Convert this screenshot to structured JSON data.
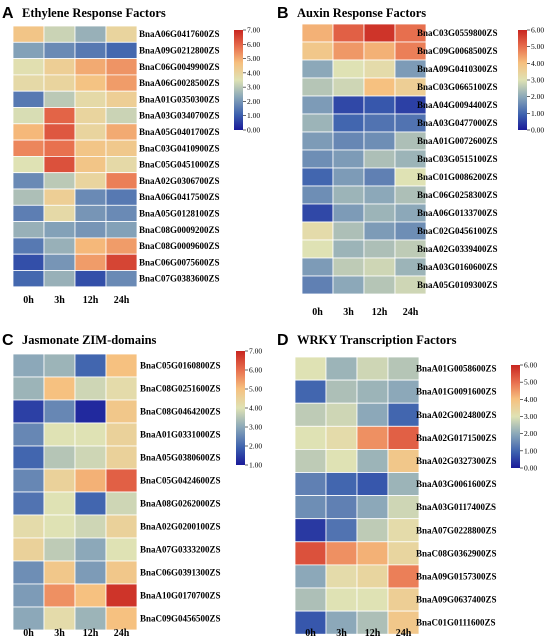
{
  "chart_data": [
    {
      "panel": "A",
      "title": "Ethylene Response Factors",
      "type": "heatmap",
      "x": [
        "0h",
        "3h",
        "12h",
        "24h"
      ],
      "colorbar": {
        "ticks": [
          "0.00",
          "1.00",
          "2.00",
          "3.00",
          "4.00",
          "5.00",
          "6.00",
          "7.00"
        ],
        "min": 0,
        "max": 7
      },
      "genes": [
        "BnaA06G0417600ZS",
        "BnaA09G0212800ZS",
        "BnaC06G0049900ZS",
        "BnaA06G0028500ZS",
        "BnaA01G0350300ZS",
        "BnaA03G0340700ZS",
        "BnaA05G0401700ZS",
        "BnaC03G0410900ZS",
        "BnaC05G0451000ZS",
        "BnaA02G0306700ZS",
        "BnaA06G0417500ZS",
        "BnaA05G0128100ZS",
        "BnaC08G0009200ZS",
        "BnaC08G0009600ZS",
        "BnaC06G0075600ZS",
        "BnaC07G0383600ZS"
      ],
      "values": [
        [
          4.5,
          3.2,
          2.5,
          4.0
        ],
        [
          2.2,
          1.8,
          1.5,
          1.2
        ],
        [
          3.6,
          4.2,
          5.0,
          5.3
        ],
        [
          3.8,
          4.0,
          4.6,
          5.2
        ],
        [
          1.5,
          3.0,
          3.8,
          4.2
        ],
        [
          3.4,
          6.0,
          4.0,
          3.2
        ],
        [
          4.8,
          6.2,
          4.0,
          5.0
        ],
        [
          5.5,
          5.8,
          4.5,
          4.4
        ],
        [
          3.5,
          6.3,
          4.5,
          3.8
        ],
        [
          1.8,
          3.0,
          4.0,
          5.6
        ],
        [
          2.8,
          4.2,
          1.8,
          1.5
        ],
        [
          1.6,
          3.8,
          2.0,
          1.8
        ],
        [
          2.5,
          2.2,
          2.0,
          2.2
        ],
        [
          1.5,
          2.5,
          4.8,
          5.2
        ],
        [
          0.8,
          2.0,
          5.2,
          6.5
        ],
        [
          1.2,
          2.5,
          0.8,
          1.8
        ]
      ]
    },
    {
      "panel": "B",
      "title": "Auxin Response Factors",
      "type": "heatmap",
      "x": [
        "0h",
        "3h",
        "12h",
        "24h"
      ],
      "colorbar": {
        "ticks": [
          "0.00",
          "1.00",
          "2.00",
          "3.00",
          "4.00",
          "5.00",
          "6.00"
        ],
        "min": 0,
        "max": 6
      },
      "genes": [
        "BnaC03G0559800ZS",
        "BnaC09G0068500ZS",
        "BnaA09G0410300ZS",
        "BnaC03G0665100ZS",
        "BnaA04G0094400ZS",
        "BnaA03G0477000ZS",
        "BnaA01G0072600ZS",
        "BnaC03G0515100ZS",
        "BnaC01G0086200ZS",
        "BnaC06G0258300ZS",
        "BnaA06G0133700ZS",
        "BnaC02G0456100ZS",
        "BnaA02G0339400ZS",
        "BnaA03G0160600ZS",
        "BnaA05G0109300ZS"
      ],
      "values": [
        [
          4.2,
          5.2,
          5.8,
          5.0
        ],
        [
          3.8,
          4.5,
          4.2,
          4.8
        ],
        [
          2.0,
          3.0,
          3.2,
          1.8
        ],
        [
          2.5,
          2.8,
          4.0,
          3.6
        ],
        [
          1.8,
          0.6,
          0.8,
          0.5
        ],
        [
          2.2,
          1.0,
          1.2,
          1.2
        ],
        [
          1.8,
          1.5,
          1.6,
          2.4
        ],
        [
          1.6,
          1.8,
          2.4,
          2.2
        ],
        [
          1.0,
          1.8,
          1.4,
          3.0
        ],
        [
          1.6,
          2.2,
          2.0,
          2.4
        ],
        [
          0.6,
          1.8,
          2.2,
          2.0
        ],
        [
          3.2,
          2.4,
          1.8,
          1.6
        ],
        [
          3.0,
          2.2,
          2.4,
          2.6
        ],
        [
          1.8,
          2.6,
          2.8,
          2.2
        ],
        [
          1.4,
          2.0,
          2.5,
          2.8
        ]
      ]
    },
    {
      "panel": "C",
      "title": "Jasmonate ZIM-domains",
      "type": "heatmap",
      "x": [
        "0h",
        "3h",
        "12h",
        "24h"
      ],
      "colorbar": {
        "ticks": [
          "1.00",
          "2.00",
          "3.00",
          "4.00",
          "5.00",
          "6.00",
          "7.00"
        ],
        "min": 1,
        "max": 7
      },
      "genes": [
        "BnaC05G0160800ZS",
        "BnaC08G0251600ZS",
        "BnaC08G0464200ZS",
        "BnaA01G0331000ZS",
        "BnaA05G0380600ZS",
        "BnaC05G0424600ZS",
        "BnaA08G0262000ZS",
        "BnaA02G0200100ZS",
        "BnaA07G0333200ZS",
        "BnaC06G0391300ZS",
        "BnaA10G0170700ZS",
        "BnaC09G0456500ZS"
      ],
      "values": [
        [
          3.0,
          3.2,
          2.0,
          5.0
        ],
        [
          3.2,
          5.0,
          3.8,
          4.2
        ],
        [
          1.5,
          2.5,
          1.2,
          4.8
        ],
        [
          2.5,
          4.0,
          4.0,
          4.5
        ],
        [
          2.0,
          3.5,
          3.8,
          4.5
        ],
        [
          2.5,
          4.5,
          5.2,
          6.2
        ],
        [
          2.2,
          4.0,
          2.0,
          3.8
        ],
        [
          4.2,
          4.0,
          3.8,
          4.5
        ],
        [
          4.5,
          3.6,
          3.0,
          4.0
        ],
        [
          2.6,
          4.8,
          2.8,
          4.8
        ],
        [
          2.8,
          5.6,
          5.0,
          6.8
        ],
        [
          3.0,
          4.2,
          3.2,
          5.0
        ]
      ]
    },
    {
      "panel": "D",
      "title": "WRKY Transcription Factors",
      "type": "heatmap",
      "x": [
        "0h",
        "3h",
        "12h",
        "24h"
      ],
      "colorbar": {
        "ticks": [
          "0.00",
          "1.00",
          "2.00",
          "3.00",
          "4.00",
          "5.00",
          "6.00"
        ],
        "min": 0,
        "max": 6
      },
      "genes": [
        "BnaA01G0058600ZS",
        "BnaA01G0091600ZS",
        "BnaA02G0024800ZS",
        "BnaA02G0171500ZS",
        "BnaA02G0327300ZS",
        "BnaA03G0061600ZS",
        "BnaA03G0117400ZS",
        "BnaA07G0228800ZS",
        "BnaC08G0362900ZS",
        "BnaA09G0157300ZS",
        "BnaA09G0637400ZS",
        "BnaC01G0111600ZS"
      ],
      "values": [
        [
          3.0,
          2.2,
          2.8,
          2.5
        ],
        [
          1.0,
          2.4,
          2.2,
          2.0
        ],
        [
          2.6,
          2.8,
          2.0,
          1.0
        ],
        [
          3.0,
          3.2,
          4.6,
          5.2
        ],
        [
          2.6,
          3.0,
          2.2,
          3.8
        ],
        [
          1.4,
          1.0,
          0.8,
          2.2
        ],
        [
          1.6,
          1.4,
          2.0,
          2.8
        ],
        [
          0.4,
          1.2,
          2.6,
          3.2
        ],
        [
          5.4,
          4.6,
          4.2,
          3.4
        ],
        [
          2.0,
          3.2,
          3.4,
          4.8
        ],
        [
          2.4,
          3.0,
          3.0,
          3.6
        ],
        [
          0.8,
          2.0,
          2.4,
          3.8
        ]
      ]
    }
  ]
}
